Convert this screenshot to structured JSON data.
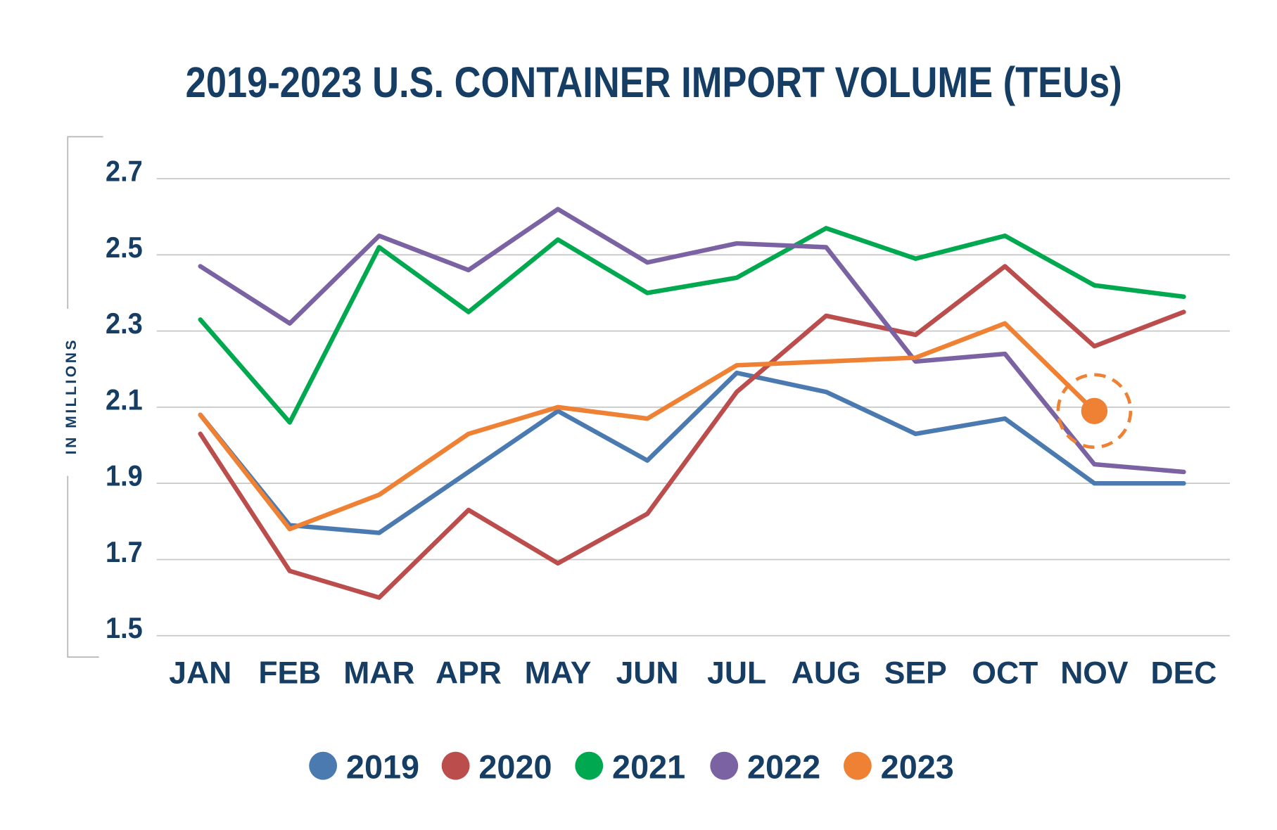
{
  "chart_data": {
    "type": "line",
    "title": "2019-2023 U.S. CONTAINER IMPORT VOLUME (TEUs)",
    "xlabel": "",
    "ylabel": "IN MILLIONS",
    "ylim": [
      1.5,
      2.7
    ],
    "yticks": [
      "2.7",
      "2.5",
      "2.3",
      "2.1",
      "1.9",
      "1.7",
      "1.5"
    ],
    "ytick_values": [
      2.7,
      2.5,
      2.3,
      2.1,
      1.9,
      1.7,
      1.5
    ],
    "grid": true,
    "legend_placement": "bottom",
    "categories": [
      "JAN",
      "FEB",
      "MAR",
      "APR",
      "MAY",
      "JUN",
      "JUL",
      "AUG",
      "SEP",
      "OCT",
      "NOV",
      "DEC"
    ],
    "series": [
      {
        "name": "2019",
        "color": "#4a7ab0",
        "values": [
          2.08,
          1.79,
          1.77,
          1.93,
          2.09,
          1.96,
          2.19,
          2.14,
          2.03,
          2.07,
          1.9,
          1.9
        ]
      },
      {
        "name": "2020",
        "color": "#bb4d4d",
        "values": [
          2.03,
          1.67,
          1.6,
          1.83,
          1.69,
          1.82,
          2.14,
          2.34,
          2.29,
          2.47,
          2.26,
          2.35
        ]
      },
      {
        "name": "2021",
        "color": "#00a94f",
        "values": [
          2.33,
          2.06,
          2.52,
          2.35,
          2.54,
          2.4,
          2.44,
          2.57,
          2.49,
          2.55,
          2.42,
          2.39
        ]
      },
      {
        "name": "2022",
        "color": "#7a62a3",
        "values": [
          2.47,
          2.32,
          2.55,
          2.46,
          2.62,
          2.48,
          2.53,
          2.52,
          2.22,
          2.24,
          1.95,
          1.93
        ]
      },
      {
        "name": "2023",
        "color": "#ee8133",
        "values": [
          2.08,
          1.78,
          1.87,
          2.03,
          2.1,
          2.07,
          2.21,
          2.22,
          2.23,
          2.32,
          2.09,
          null
        ]
      }
    ],
    "annotations": [
      {
        "series": "2023",
        "category": "NOV",
        "marker": "highlighted-point-with-dashed-circle"
      }
    ]
  },
  "colors": {
    "text": "#163d63",
    "grid": "#c8c8c8",
    "bracket": "#b5b5b5"
  }
}
